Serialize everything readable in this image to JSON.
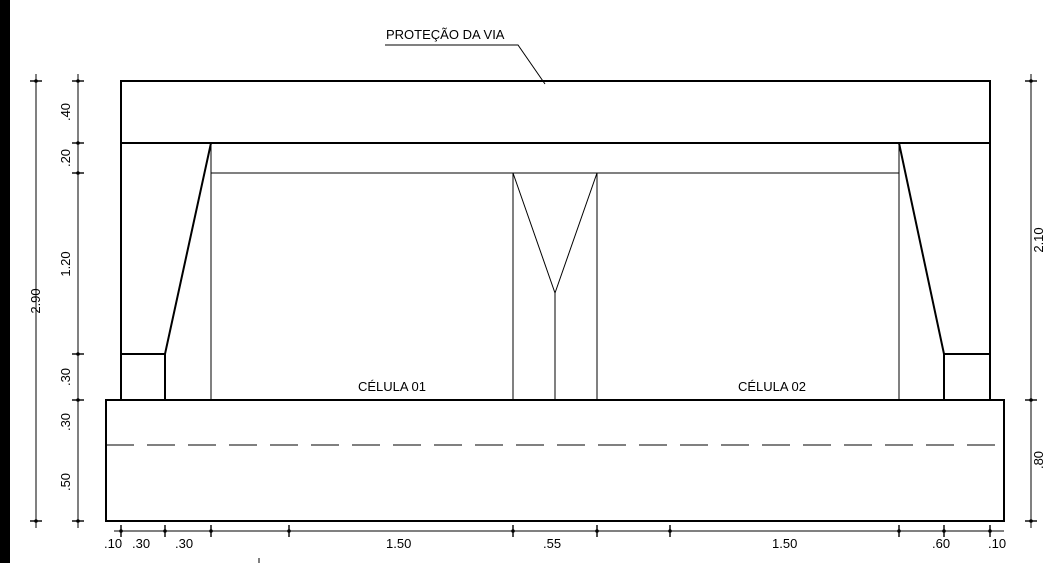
{
  "labels": {
    "protecao": "PROTEÇÃO DA VIA",
    "celula_01": "CÉLULA 01",
    "celula_02": "CÉLULA 02"
  },
  "dimensions": {
    "left_outer": "2.90",
    "left_inner": [
      ".40",
      ".20",
      "1.20",
      ".30",
      ".30",
      ".50"
    ],
    "right": [
      "2.10",
      ".80"
    ],
    "bottom": [
      ".10",
      ".30",
      ".30",
      "1.50",
      ".55",
      "1.50",
      ".60",
      ".10"
    ]
  }
}
